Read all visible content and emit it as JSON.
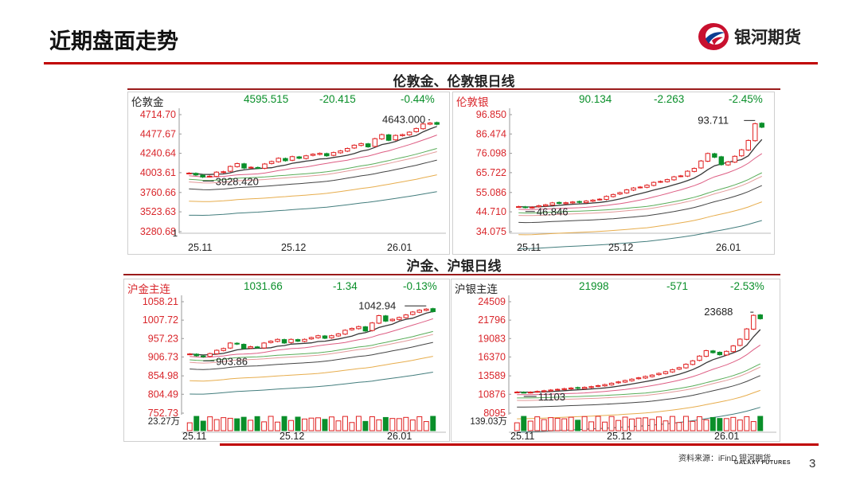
{
  "page": {
    "title": "近期盘面走势",
    "page_number": "3",
    "source": "资料来源：iFinD 银河期货",
    "galaxy": "GALAXY FUTURES"
  },
  "logo": {
    "text": "银河期货"
  },
  "sections": [
    {
      "title": "伦敦金、伦敦银日线"
    },
    {
      "title": "沪金、沪银日线"
    }
  ],
  "colors": {
    "up": "#e02020",
    "down": "#0a8f2a",
    "header_green": "#0a8f2a",
    "axis_red": "#d9262b",
    "ma": [
      "#222222",
      "#d94b75",
      "#47a447",
      "#e08e8e",
      "#303030",
      "#e4a43a",
      "#2f6f6f"
    ]
  },
  "chart_data": [
    {
      "type": "line",
      "name": "伦敦金",
      "price": "4595.515",
      "change": "-20.415",
      "pct": "-0.44%",
      "yticks": [
        "4714.70",
        "4477.67",
        "4240.64",
        "4003.61",
        "3760.66",
        "3523.63",
        "3280.68"
      ],
      "ylim": [
        3280.68,
        4714.7
      ],
      "xticks": [
        "25.11",
        "25.12",
        "26.01"
      ],
      "annotations": {
        "high": "4643.000",
        "low": "3928.420"
      },
      "volume_label": "1",
      "close": [
        3998,
        3975,
        3950,
        3960,
        4010,
        4015,
        4080,
        4115,
        4060,
        4070,
        4060,
        4110,
        4140,
        4180,
        4150,
        4200,
        4180,
        4210,
        4230,
        4240,
        4210,
        4250,
        4270,
        4300,
        4340,
        4360,
        4320,
        4420,
        4470,
        4400,
        4460,
        4470,
        4500,
        4545,
        4600,
        4612,
        4596
      ]
    },
    {
      "type": "line",
      "name": "伦敦银",
      "price": "90.134",
      "change": "-2.263",
      "pct": "-2.45%",
      "yticks": [
        "96.850",
        "86.474",
        "76.098",
        "65.722",
        "55.086",
        "44.710",
        "34.075"
      ],
      "ylim": [
        34.075,
        96.85
      ],
      "xticks": [
        "25.11",
        "25.12",
        "26.01"
      ],
      "annotations": {
        "high": "93.711",
        "low": "46.846"
      },
      "close": [
        47.5,
        47.0,
        47.2,
        48.0,
        48.5,
        49.5,
        49.2,
        49.6,
        50.0,
        49.8,
        50.5,
        51.0,
        51.5,
        53.0,
        54.0,
        55.0,
        56.5,
        57.5,
        58.0,
        59.0,
        60.5,
        61.0,
        62.0,
        63.5,
        64.0,
        66.5,
        68.0,
        72.0,
        76.0,
        74.0,
        70.0,
        71.5,
        74.5,
        78.0,
        83.0,
        92.0,
        90.1
      ]
    },
    {
      "type": "line",
      "name": "沪金主连",
      "price": "1031.66",
      "change": "-1.34",
      "pct": "-0.13%",
      "yticks": [
        "1058.21",
        "1007.72",
        "957.23",
        "906.73",
        "854.98",
        "804.49",
        "752.73"
      ],
      "ylim": [
        752.73,
        1058.21
      ],
      "xticks": [
        "25.11",
        "25.12",
        "26.01"
      ],
      "annotations": {
        "high": "1042.94",
        "low": "903.86"
      },
      "volume_label": "23.27万",
      "close": [
        915,
        910,
        907,
        916,
        925,
        930,
        945,
        942,
        930,
        935,
        932,
        945,
        950,
        955,
        945,
        955,
        950,
        955,
        960,
        965,
        958,
        965,
        970,
        980,
        985,
        990,
        978,
        1000,
        1020,
        1005,
        1010,
        1015,
        1022,
        1030,
        1035,
        1038,
        1031
      ]
    },
    {
      "type": "line",
      "name": "沪银主连",
      "price": "21998",
      "change": "-571",
      "pct": "-2.53%",
      "yticks": [
        "24509",
        "21796",
        "19083",
        "16370",
        "13589",
        "10876",
        "8095"
      ],
      "ylim": [
        8095,
        24509
      ],
      "xticks": [
        "25.11",
        "25.12",
        "26.01"
      ],
      "annotations": {
        "high": "23688",
        "low": "11103"
      },
      "volume_label": "139.03万",
      "close": [
        11200,
        11150,
        11180,
        11300,
        11400,
        11500,
        11600,
        11700,
        11800,
        11750,
        11900,
        12000,
        12150,
        12300,
        12500,
        12700,
        12900,
        13100,
        13300,
        13500,
        13700,
        13950,
        14200,
        14500,
        14800,
        15300,
        15800,
        16500,
        17300,
        17000,
        16700,
        17200,
        18000,
        19000,
        20500,
        22500,
        22000
      ]
    }
  ]
}
